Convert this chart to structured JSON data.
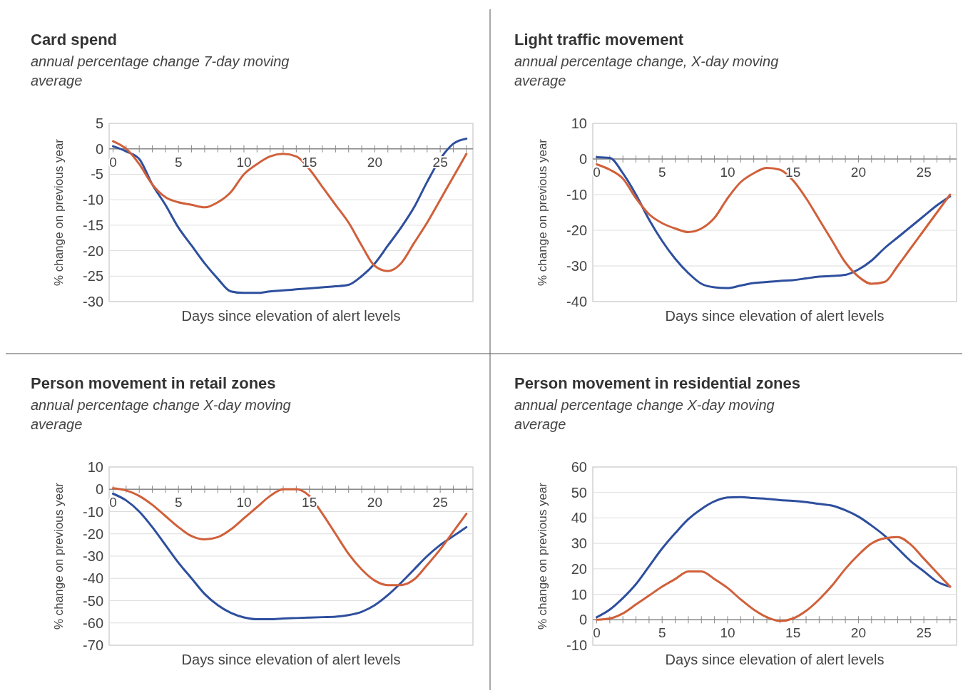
{
  "chart_data": [
    {
      "type": "line",
      "title": "Card spend",
      "subtitle": "annual percentage change 7-day moving average",
      "xlabel": "Days since elevation of alert levels",
      "ylabel": "% change on previous year",
      "x": [
        0,
        1,
        2,
        3,
        4,
        5,
        6,
        7,
        8,
        9,
        10,
        11,
        12,
        13,
        14,
        15,
        16,
        17,
        18,
        19,
        20,
        21,
        22,
        23,
        24,
        25,
        26,
        27
      ],
      "xlim": [
        -0.3,
        27.5
      ],
      "xticks": [
        0,
        {
          "value": 1,
          "label": null
        },
        {
          "value": 2,
          "label": null
        },
        {
          "value": 3,
          "label": null
        },
        {
          "value": 4,
          "label": null
        },
        5,
        {
          "value": 6,
          "label": null
        },
        {
          "value": 7,
          "label": null
        },
        {
          "value": 8,
          "label": null
        },
        {
          "value": 9,
          "label": null
        },
        10,
        {
          "value": 11,
          "label": null
        },
        {
          "value": 12,
          "label": null
        },
        {
          "value": 13,
          "label": null
        },
        {
          "value": 14,
          "label": null
        },
        15,
        {
          "value": 16,
          "label": null
        },
        {
          "value": 17,
          "label": null
        },
        {
          "value": 18,
          "label": null
        },
        {
          "value": 19,
          "label": null
        },
        20,
        {
          "value": 21,
          "label": null
        },
        {
          "value": 22,
          "label": null
        },
        {
          "value": 23,
          "label": null
        },
        {
          "value": 24,
          "label": null
        },
        25,
        {
          "value": 26,
          "label": null
        },
        {
          "value": 27,
          "label": null
        }
      ],
      "ylim": [
        -30,
        5
      ],
      "yticks": [
        -30,
        -25,
        -20,
        -15,
        -10,
        -5,
        0,
        5
      ],
      "grid": "y",
      "marker": "none",
      "line_style": "solid",
      "series": [
        {
          "color": "#2e4f9e",
          "values": [
            0.5,
            -0.5,
            -2,
            -7,
            -11,
            -15.5,
            -19,
            -22.5,
            -25.5,
            -28,
            -28.3,
            -28.3,
            -28,
            -27.8,
            -27.6,
            -27.4,
            -27.2,
            -27,
            -26.7,
            -25,
            -22.5,
            -19,
            -15.5,
            -11.5,
            -6.5,
            -2,
            1,
            2
          ]
        },
        {
          "color": "#d0603a",
          "values": [
            1.5,
            0,
            -3,
            -7,
            -9.5,
            -10.5,
            -11,
            -11.5,
            -10.5,
            -8.5,
            -5,
            -3,
            -1.5,
            -1,
            -1.5,
            -4,
            -7.5,
            -11,
            -14.5,
            -19,
            -23,
            -24,
            -22.5,
            -18.5,
            -14.5,
            -10,
            -5.5,
            -1
          ]
        }
      ]
    },
    {
      "type": "line",
      "title": "Light traffic movement",
      "subtitle": "annual percentage change, X-day moving average",
      "xlabel": "Days since elevation of alert levels",
      "ylabel": "% change on previous year",
      "x": [
        0,
        1,
        2,
        3,
        4,
        5,
        6,
        7,
        8,
        9,
        10,
        11,
        12,
        13,
        14,
        15,
        16,
        17,
        18,
        19,
        20,
        21,
        22,
        23,
        24,
        25,
        26,
        27
      ],
      "xlim": [
        -0.3,
        27.5
      ],
      "xticks": [
        0,
        {
          "value": 1,
          "label": null
        },
        {
          "value": 2,
          "label": null
        },
        {
          "value": 3,
          "label": null
        },
        {
          "value": 4,
          "label": null
        },
        5,
        {
          "value": 6,
          "label": null
        },
        {
          "value": 7,
          "label": null
        },
        {
          "value": 8,
          "label": null
        },
        {
          "value": 9,
          "label": null
        },
        10,
        {
          "value": 11,
          "label": null
        },
        {
          "value": 12,
          "label": null
        },
        {
          "value": 13,
          "label": null
        },
        {
          "value": 14,
          "label": null
        },
        15,
        {
          "value": 16,
          "label": null
        },
        {
          "value": 17,
          "label": null
        },
        {
          "value": 18,
          "label": null
        },
        {
          "value": 19,
          "label": null
        },
        20,
        {
          "value": 21,
          "label": null
        },
        {
          "value": 22,
          "label": null
        },
        {
          "value": 23,
          "label": null
        },
        {
          "value": 24,
          "label": null
        },
        25,
        {
          "value": 26,
          "label": null
        },
        {
          "value": 27,
          "label": null
        }
      ],
      "ylim": [
        -40,
        10
      ],
      "yticks": [
        -40,
        -30,
        -20,
        -10,
        0,
        10
      ],
      "grid": "y",
      "marker": "none",
      "line_style": "solid",
      "series": [
        {
          "color": "#2e4f9e",
          "values": [
            0.5,
            0.3,
            -4,
            -10,
            -17,
            -23,
            -28,
            -32,
            -35,
            -36,
            -36.2,
            -35.5,
            -34.8,
            -34.5,
            -34.2,
            -34,
            -33.5,
            -33,
            -32.8,
            -32.5,
            -31,
            -28.5,
            -25,
            -22,
            -19,
            -16,
            -13,
            -10.5
          ]
        },
        {
          "color": "#d0603a",
          "values": [
            -1.5,
            -3,
            -5.5,
            -11,
            -15.5,
            -18,
            -19.5,
            -20.5,
            -19.5,
            -16.5,
            -11,
            -6.5,
            -4,
            -2.5,
            -3,
            -6,
            -11,
            -17,
            -23,
            -29,
            -33,
            -35,
            -34.5,
            -30,
            -25,
            -20,
            -15,
            -10
          ]
        }
      ]
    },
    {
      "type": "line",
      "title": "Person movement in retail zones",
      "subtitle": "annual percentage change X-day moving average",
      "xlabel": "Days since elevation of alert levels",
      "ylabel": "% change on previous year",
      "x": [
        0,
        1,
        2,
        3,
        4,
        5,
        6,
        7,
        8,
        9,
        10,
        11,
        12,
        13,
        14,
        15,
        16,
        17,
        18,
        19,
        20,
        21,
        22,
        23,
        24,
        25,
        26,
        27
      ],
      "xlim": [
        -0.3,
        27.5
      ],
      "xticks": [
        0,
        {
          "value": 1,
          "label": null
        },
        {
          "value": 2,
          "label": null
        },
        {
          "value": 3,
          "label": null
        },
        {
          "value": 4,
          "label": null
        },
        5,
        {
          "value": 6,
          "label": null
        },
        {
          "value": 7,
          "label": null
        },
        {
          "value": 8,
          "label": null
        },
        {
          "value": 9,
          "label": null
        },
        10,
        {
          "value": 11,
          "label": null
        },
        {
          "value": 12,
          "label": null
        },
        {
          "value": 13,
          "label": null
        },
        {
          "value": 14,
          "label": null
        },
        15,
        {
          "value": 16,
          "label": null
        },
        {
          "value": 17,
          "label": null
        },
        {
          "value": 18,
          "label": null
        },
        {
          "value": 19,
          "label": null
        },
        20,
        {
          "value": 21,
          "label": null
        },
        {
          "value": 22,
          "label": null
        },
        {
          "value": 23,
          "label": null
        },
        {
          "value": 24,
          "label": null
        },
        25,
        {
          "value": 26,
          "label": null
        },
        {
          "value": 27,
          "label": null
        }
      ],
      "ylim": [
        -70,
        10
      ],
      "yticks": [
        -70,
        -60,
        -50,
        -40,
        -30,
        -20,
        -10,
        0,
        10
      ],
      "grid": "y",
      "marker": "none",
      "line_style": "solid",
      "series": [
        {
          "color": "#2e4f9e",
          "values": [
            -2,
            -5,
            -10,
            -17,
            -25,
            -33,
            -40,
            -47,
            -52,
            -55.5,
            -57.5,
            -58.3,
            -58.3,
            -58,
            -57.8,
            -57.6,
            -57.4,
            -57.2,
            -56.5,
            -55,
            -52,
            -47.5,
            -42,
            -36,
            -30,
            -25,
            -21,
            -17
          ]
        },
        {
          "color": "#d0603a",
          "values": [
            0.5,
            -0.5,
            -3,
            -7,
            -12,
            -17,
            -21,
            -22.5,
            -21.5,
            -18,
            -13,
            -8,
            -3,
            0,
            0,
            -3,
            -11,
            -20,
            -29,
            -36,
            -41,
            -43,
            -43,
            -40.5,
            -34,
            -27,
            -19,
            -11
          ]
        }
      ]
    },
    {
      "type": "line",
      "title": "Person movement in residential zones",
      "subtitle": "annual percentage change X-day moving average",
      "xlabel": "Days since elevation of alert levels",
      "ylabel": "% change on previous year",
      "x": [
        0,
        1,
        2,
        3,
        4,
        5,
        6,
        7,
        8,
        9,
        10,
        11,
        12,
        13,
        14,
        15,
        16,
        17,
        18,
        19,
        20,
        21,
        22,
        23,
        24,
        25,
        26,
        27
      ],
      "xlim": [
        -0.3,
        27.5
      ],
      "xticks": [
        0,
        {
          "value": 1,
          "label": null
        },
        {
          "value": 2,
          "label": null
        },
        {
          "value": 3,
          "label": null
        },
        {
          "value": 4,
          "label": null
        },
        5,
        {
          "value": 6,
          "label": null
        },
        {
          "value": 7,
          "label": null
        },
        {
          "value": 8,
          "label": null
        },
        {
          "value": 9,
          "label": null
        },
        10,
        {
          "value": 11,
          "label": null
        },
        {
          "value": 12,
          "label": null
        },
        {
          "value": 13,
          "label": null
        },
        {
          "value": 14,
          "label": null
        },
        15,
        {
          "value": 16,
          "label": null
        },
        {
          "value": 17,
          "label": null
        },
        {
          "value": 18,
          "label": null
        },
        {
          "value": 19,
          "label": null
        },
        20,
        {
          "value": 21,
          "label": null
        },
        {
          "value": 22,
          "label": null
        },
        {
          "value": 23,
          "label": null
        },
        {
          "value": 24,
          "label": null
        },
        25,
        {
          "value": 26,
          "label": null
        },
        {
          "value": 27,
          "label": null
        }
      ],
      "ylim": [
        -10,
        60
      ],
      "yticks": [
        -10,
        0,
        10,
        20,
        30,
        40,
        50,
        60
      ],
      "grid": "y",
      "marker": "none",
      "line_style": "solid",
      "series": [
        {
          "color": "#2e4f9e",
          "values": [
            1,
            4,
            8.5,
            14,
            21,
            28,
            34,
            39.5,
            43.5,
            46.5,
            48,
            48.2,
            47.8,
            47.5,
            47,
            46.7,
            46.2,
            45.5,
            44.8,
            43,
            40.5,
            37,
            33,
            28,
            23,
            19,
            15,
            13
          ]
        },
        {
          "color": "#d0603a",
          "values": [
            0,
            0.5,
            2.5,
            6,
            9.5,
            13,
            16,
            19,
            19,
            16,
            12.5,
            8,
            4,
            1,
            -0.5,
            0.5,
            3.5,
            8,
            13.5,
            20,
            25.5,
            30,
            32,
            32.5,
            29.5,
            24,
            18.5,
            13
          ]
        }
      ]
    }
  ]
}
